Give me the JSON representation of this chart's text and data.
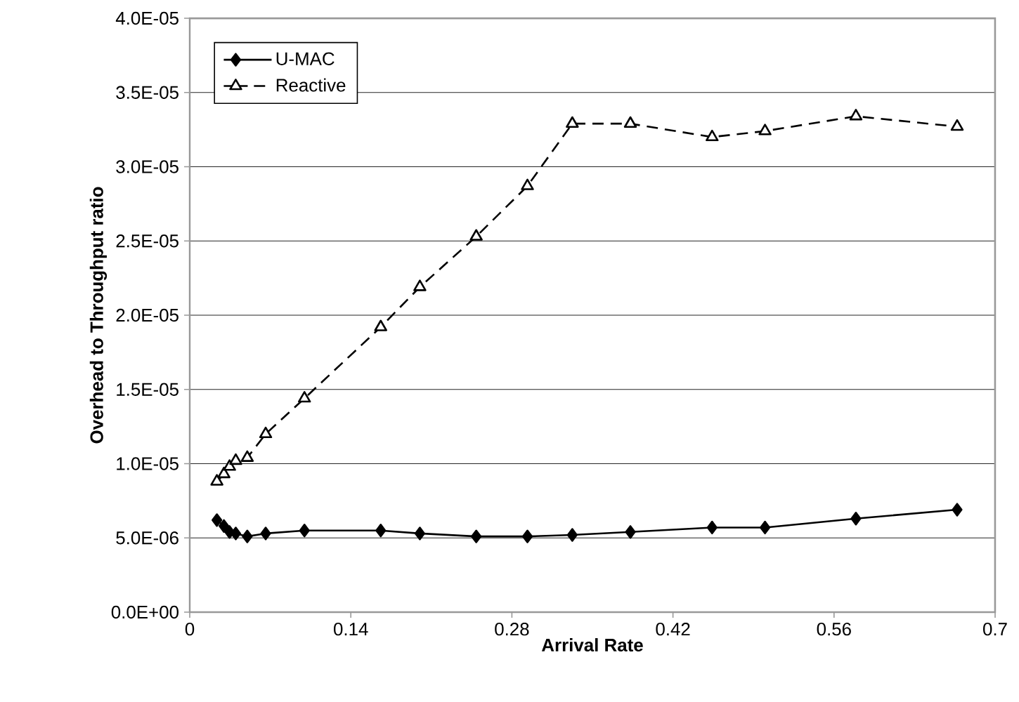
{
  "chart_data": {
    "type": "line",
    "xlabel": "Arrival Rate",
    "ylabel": "Overhead to Throughput ratio",
    "xlim": [
      0,
      0.7
    ],
    "xticks": [
      0,
      0.14,
      0.28,
      0.42,
      0.56,
      0.7
    ],
    "ylim": [
      0,
      4e-05
    ],
    "yticks": [
      {
        "value": 0,
        "label": "0.0E+00"
      },
      {
        "value": 5e-06,
        "label": "5.0E-06"
      },
      {
        "value": 1e-05,
        "label": "1.0E-05"
      },
      {
        "value": 1.5e-05,
        "label": "1.5E-05"
      },
      {
        "value": 2e-05,
        "label": "2.0E-05"
      },
      {
        "value": 2.5e-05,
        "label": "2.5E-05"
      },
      {
        "value": 3e-05,
        "label": "3.0E-05"
      },
      {
        "value": 3.5e-05,
        "label": "3.5E-05"
      },
      {
        "value": 4e-05,
        "label": "4.0E-05"
      }
    ],
    "grid": "y",
    "legend": "top left",
    "x": [
      0.0236,
      0.0297,
      0.0346,
      0.04,
      0.05,
      0.066,
      0.0997,
      0.166,
      0.2,
      0.249,
      0.2935,
      0.3325,
      0.383,
      0.454,
      0.5,
      0.579,
      0.667
    ],
    "series": [
      {
        "name": "U-MAC",
        "color": "#000000",
        "marker": "diamond",
        "line_style": "solid",
        "values": [
          6.2e-06,
          5.8e-06,
          5.4e-06,
          5.3e-06,
          5.1e-06,
          5.3e-06,
          5.5e-06,
          5.5e-06,
          5.3e-06,
          5.1e-06,
          5.1e-06,
          5.2e-06,
          5.4e-06,
          5.7e-06,
          5.7e-06,
          6.3e-06,
          6.9e-06
        ]
      },
      {
        "name": "Reactive",
        "color": "#000000",
        "marker": "triangle",
        "line_style": "dashed",
        "values": [
          8.8e-06,
          9.3e-06,
          9.8e-06,
          1.02e-05,
          1.04e-05,
          1.2e-05,
          1.44e-05,
          1.92e-05,
          2.19e-05,
          2.53e-05,
          2.87e-05,
          3.29e-05,
          3.29e-05,
          3.2e-05,
          3.24e-05,
          3.34e-05,
          3.27e-05
        ]
      }
    ]
  }
}
